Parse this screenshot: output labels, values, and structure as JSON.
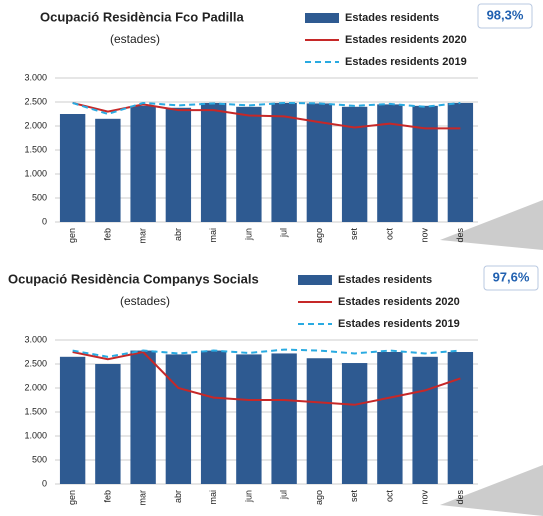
{
  "chart_data": [
    {
      "type": "bar",
      "title": "Ocupació Residència Fco Padilla",
      "subtitle": "(estades)",
      "annotation": "98,3%",
      "categories": [
        "gen",
        "feb",
        "mar",
        "abr",
        "mai",
        "jun",
        "jul",
        "ago",
        "set",
        "oct",
        "nov",
        "des"
      ],
      "series": [
        {
          "name": "Estades residents",
          "type": "bar",
          "color": "#2e5a91",
          "values": [
            2250,
            2150,
            2420,
            2380,
            2480,
            2400,
            2480,
            2470,
            2400,
            2450,
            2420,
            2480
          ]
        },
        {
          "name": "Estades residents 2020",
          "type": "line",
          "color": "#c62828",
          "values": [
            2480,
            2300,
            2450,
            2330,
            2330,
            2220,
            2200,
            2080,
            1970,
            2050,
            1950,
            1950
          ]
        },
        {
          "name": "Estades residents 2019",
          "type": "line",
          "dashed": true,
          "color": "#29aae1",
          "values": [
            2480,
            2250,
            2480,
            2430,
            2470,
            2430,
            2480,
            2470,
            2420,
            2460,
            2400,
            2480
          ]
        }
      ],
      "ylim": [
        0,
        3000
      ],
      "yticks": [
        0,
        500,
        {
          "value": 1000,
          "label": "1.000"
        },
        {
          "value": 1500,
          "label": "1.500"
        },
        {
          "value": 2000,
          "label": "2.000"
        },
        {
          "value": 2500,
          "label": "2.500"
        },
        {
          "value": 3000,
          "label": "3.000"
        }
      ],
      "grid": true
    },
    {
      "type": "bar",
      "title": "Ocupació Residència Companys Socials",
      "subtitle": "(estades)",
      "annotation": "97,6%",
      "categories": [
        "gen",
        "feb",
        "mar",
        "abr",
        "mai",
        "jun",
        "jul",
        "ago",
        "set",
        "oct",
        "nov",
        "des"
      ],
      "series": [
        {
          "name": "Estades residents",
          "type": "bar",
          "color": "#2e5a91",
          "values": [
            2650,
            2500,
            2780,
            2700,
            2780,
            2700,
            2720,
            2620,
            2520,
            2750,
            2650,
            2750
          ]
        },
        {
          "name": "Estades residents 2020",
          "type": "line",
          "color": "#c62828",
          "values": [
            2750,
            2600,
            2750,
            2000,
            1800,
            1750,
            1750,
            1700,
            1650,
            1800,
            1950,
            2200
          ]
        },
        {
          "name": "Estades residents 2019",
          "type": "line",
          "dashed": true,
          "color": "#29aae1",
          "values": [
            2780,
            2650,
            2780,
            2720,
            2780,
            2730,
            2800,
            2780,
            2720,
            2780,
            2720,
            2780
          ]
        }
      ],
      "ylim": [
        0,
        3000
      ],
      "yticks": [
        0,
        500,
        {
          "value": 1000,
          "label": "1.000"
        },
        {
          "value": 1500,
          "label": "1.500"
        },
        {
          "value": 2000,
          "label": "2.000"
        },
        {
          "value": 2500,
          "label": "2.500"
        },
        {
          "value": 3000,
          "label": "3.000"
        }
      ],
      "grid": true
    }
  ]
}
